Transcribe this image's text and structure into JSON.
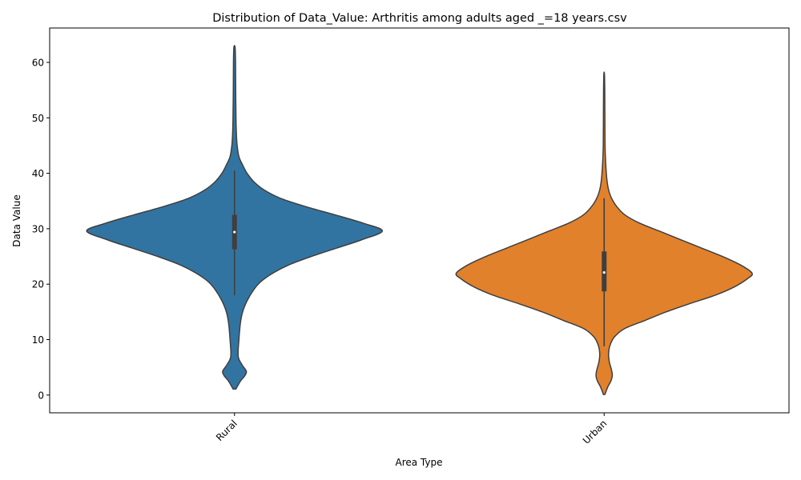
{
  "chart_data": {
    "type": "violin",
    "title": "Distribution of Data_Value: Arthritis among adults aged _=18 years.csv",
    "xlabel": "Area Type",
    "ylabel": "Data Value",
    "ylim": [
      -3.2,
      66.2
    ],
    "yticks": [
      0,
      10,
      20,
      30,
      40,
      50,
      60
    ],
    "grid": false,
    "categories": [
      "Rural",
      "Urban"
    ],
    "series": [
      {
        "category": "Rural",
        "color": "#3274a1",
        "min": 1.1,
        "max": 62.7,
        "q1": 26.3,
        "median": 29.4,
        "q3": 32.5,
        "whisker_low": 18.0,
        "whisker_high": 40.5,
        "density": [
          [
            1.1,
            0.01
          ],
          [
            2.5,
            0.04
          ],
          [
            3.5,
            0.07
          ],
          [
            4.3,
            0.08
          ],
          [
            5.5,
            0.05
          ],
          [
            7.0,
            0.025
          ],
          [
            10.0,
            0.03
          ],
          [
            13.0,
            0.04
          ],
          [
            15.0,
            0.055
          ],
          [
            17.0,
            0.085
          ],
          [
            19.0,
            0.13
          ],
          [
            20.5,
            0.18
          ],
          [
            22.0,
            0.26
          ],
          [
            23.5,
            0.37
          ],
          [
            25.0,
            0.52
          ],
          [
            26.5,
            0.69
          ],
          [
            28.0,
            0.86
          ],
          [
            29.6,
            1.0
          ],
          [
            31.0,
            0.87
          ],
          [
            32.5,
            0.68
          ],
          [
            34.0,
            0.48
          ],
          [
            35.5,
            0.31
          ],
          [
            37.0,
            0.2
          ],
          [
            38.5,
            0.13
          ],
          [
            40.0,
            0.085
          ],
          [
            41.5,
            0.055
          ],
          [
            43.0,
            0.03
          ],
          [
            45.0,
            0.018
          ],
          [
            47.0,
            0.013
          ],
          [
            50.0,
            0.01
          ],
          [
            55.0,
            0.008
          ],
          [
            60.0,
            0.007
          ],
          [
            62.7,
            0.004
          ]
        ]
      },
      {
        "category": "Urban",
        "color": "#e1812c",
        "min": 0.1,
        "max": 57.9,
        "q1": 18.7,
        "median": 22.1,
        "q3": 25.9,
        "whisker_low": 8.8,
        "whisker_high": 35.5,
        "density": [
          [
            0.1,
            0.005
          ],
          [
            1.5,
            0.025
          ],
          [
            2.5,
            0.045
          ],
          [
            3.5,
            0.055
          ],
          [
            4.5,
            0.05
          ],
          [
            6.0,
            0.035
          ],
          [
            7.5,
            0.03
          ],
          [
            9.0,
            0.04
          ],
          [
            10.5,
            0.07
          ],
          [
            12.0,
            0.14
          ],
          [
            13.5,
            0.28
          ],
          [
            15.0,
            0.42
          ],
          [
            16.5,
            0.58
          ],
          [
            18.0,
            0.75
          ],
          [
            19.5,
            0.88
          ],
          [
            21.0,
            0.97
          ],
          [
            22.0,
            1.0
          ],
          [
            23.5,
            0.92
          ],
          [
            25.0,
            0.8
          ],
          [
            26.5,
            0.66
          ],
          [
            28.0,
            0.52
          ],
          [
            29.5,
            0.38
          ],
          [
            31.0,
            0.24
          ],
          [
            32.5,
            0.14
          ],
          [
            34.0,
            0.085
          ],
          [
            35.5,
            0.05
          ],
          [
            37.0,
            0.03
          ],
          [
            39.0,
            0.018
          ],
          [
            42.0,
            0.01
          ],
          [
            45.0,
            0.006
          ],
          [
            50.0,
            0.005
          ],
          [
            55.0,
            0.004
          ],
          [
            57.9,
            0.002
          ]
        ]
      }
    ]
  }
}
